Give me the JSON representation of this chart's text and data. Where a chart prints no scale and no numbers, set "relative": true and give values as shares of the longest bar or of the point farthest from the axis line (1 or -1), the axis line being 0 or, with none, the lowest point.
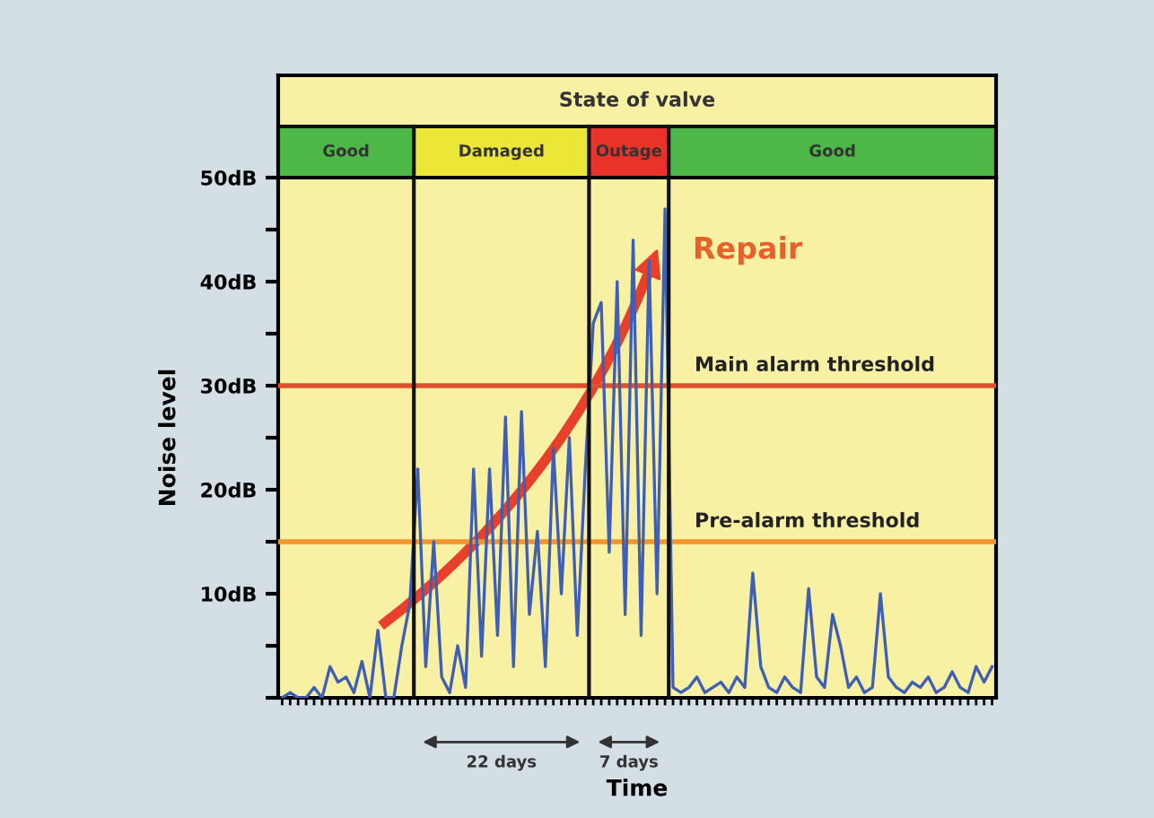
{
  "chart_data": [
    {
      "type": "bar",
      "title": "State of valve",
      "orientation": "horizontal",
      "stacked": true,
      "relative": true,
      "categories": [
        null
      ],
      "series": [
        {
          "name": "Good",
          "color": "#4db848",
          "values": [
            0.189
          ]
        },
        {
          "name": "Damaged",
          "color": "#ece636",
          "values": [
            0.244
          ]
        },
        {
          "name": "Outage",
          "color": "#e8322a",
          "values": [
            0.111
          ]
        },
        {
          "name": "Good",
          "color": "#4db848",
          "values": [
            0.456
          ]
        }
      ]
    },
    {
      "type": "line",
      "xlabel": "Time",
      "ylabel": "Noise level",
      "categories": [
        null,
        null,
        null,
        null,
        null,
        null,
        null,
        null,
        null,
        null,
        null,
        null,
        null,
        null,
        null,
        null,
        null,
        null,
        null,
        null,
        null,
        null,
        null,
        null,
        null,
        null,
        null,
        null,
        null,
        null,
        null,
        null,
        null,
        null,
        null,
        null,
        null,
        null,
        null,
        null,
        null,
        null,
        null,
        null,
        null,
        null,
        null,
        null,
        null,
        null,
        null,
        null,
        null,
        null,
        null,
        null,
        null,
        null,
        null,
        null,
        null,
        null,
        null,
        null,
        null,
        null,
        null,
        null,
        null,
        null,
        null,
        null,
        null,
        null,
        null,
        null,
        null,
        null,
        null,
        null,
        null,
        null,
        null,
        null,
        null,
        null,
        null,
        null,
        null,
        null
      ],
      "series": [
        {
          "color": "#3f5fb5",
          "values": [
            0,
            0.5,
            0,
            0,
            1,
            0,
            3,
            1.5,
            2,
            0.5,
            3.5,
            0,
            6.5,
            0,
            0,
            5,
            9,
            22,
            3,
            15,
            2,
            0.5,
            5,
            1,
            22,
            4,
            22,
            6,
            27,
            3,
            27.5,
            8,
            16,
            3,
            24,
            10,
            25,
            6,
            22,
            36,
            38,
            14,
            40,
            8,
            44,
            6,
            42,
            10,
            47,
            1,
            0.5,
            1,
            2,
            0.5,
            1,
            1.5,
            0.5,
            2,
            1,
            12,
            3,
            1,
            0.5,
            2,
            1,
            0.5,
            10.5,
            2,
            1,
            8,
            5,
            1,
            2,
            0.5,
            1,
            10,
            2,
            1,
            0.5,
            1.5,
            1,
            2,
            0.5,
            1,
            2.5,
            1,
            0.5,
            3,
            1.5,
            3
          ]
        }
      ],
      "ylim": [
        0,
        50
      ],
      "yticks": [
        {
          "value": 0,
          "label": null
        },
        {
          "value": 5,
          "label": null
        },
        {
          "value": 10,
          "label": "10dB"
        },
        {
          "value": 15,
          "label": null
        },
        {
          "value": 20,
          "label": "20dB"
        },
        {
          "value": 25,
          "label": null
        },
        {
          "value": 30,
          "label": "30dB"
        },
        {
          "value": 35,
          "label": null
        },
        {
          "value": 40,
          "label": "40dB"
        },
        {
          "value": 45,
          "label": null
        },
        {
          "value": 50,
          "label": "50dB"
        }
      ],
      "ref_lines": [
        {
          "axis": "y",
          "value": 30,
          "label": "Main alarm threshold",
          "color": "#e0502a"
        },
        {
          "axis": "y",
          "value": 15,
          "label": "Pre-alarm threshold",
          "color": "#f0962a"
        }
      ],
      "annotations": [
        "Repair",
        "22 days",
        "7 days"
      ],
      "grid": false
    }
  ]
}
